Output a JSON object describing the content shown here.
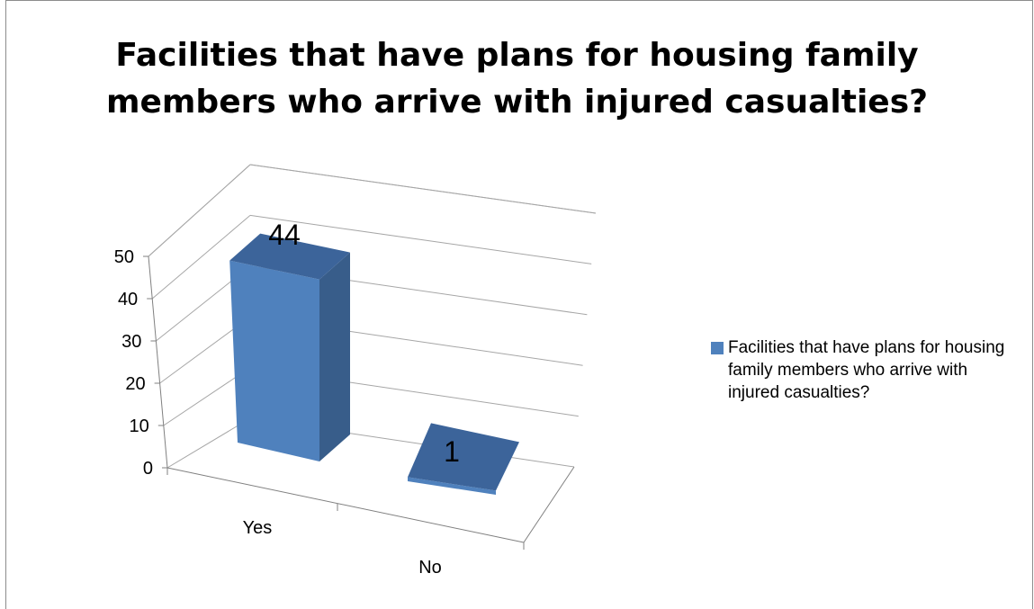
{
  "chart_data": {
    "type": "bar",
    "title": "Facilities that have plans for housing family members who arrive with injured casualties?",
    "title_lines": [
      "Facilities that have plans for housing family",
      "members who arrive with injured casualties?"
    ],
    "categories": [
      "Yes",
      "No"
    ],
    "series": [
      {
        "name": "Facilities that have plans for housing family members who arrive with injured casualties?",
        "values": [
          44,
          1
        ],
        "color": "#4f81bd"
      }
    ],
    "data_labels": [
      "44",
      "1"
    ],
    "yticks": [
      0,
      10,
      20,
      30,
      40,
      50
    ],
    "ylim": [
      0,
      50
    ],
    "xlabel": "",
    "ylabel": "",
    "grid": true,
    "legend_position": "right",
    "style": "3d-column"
  }
}
